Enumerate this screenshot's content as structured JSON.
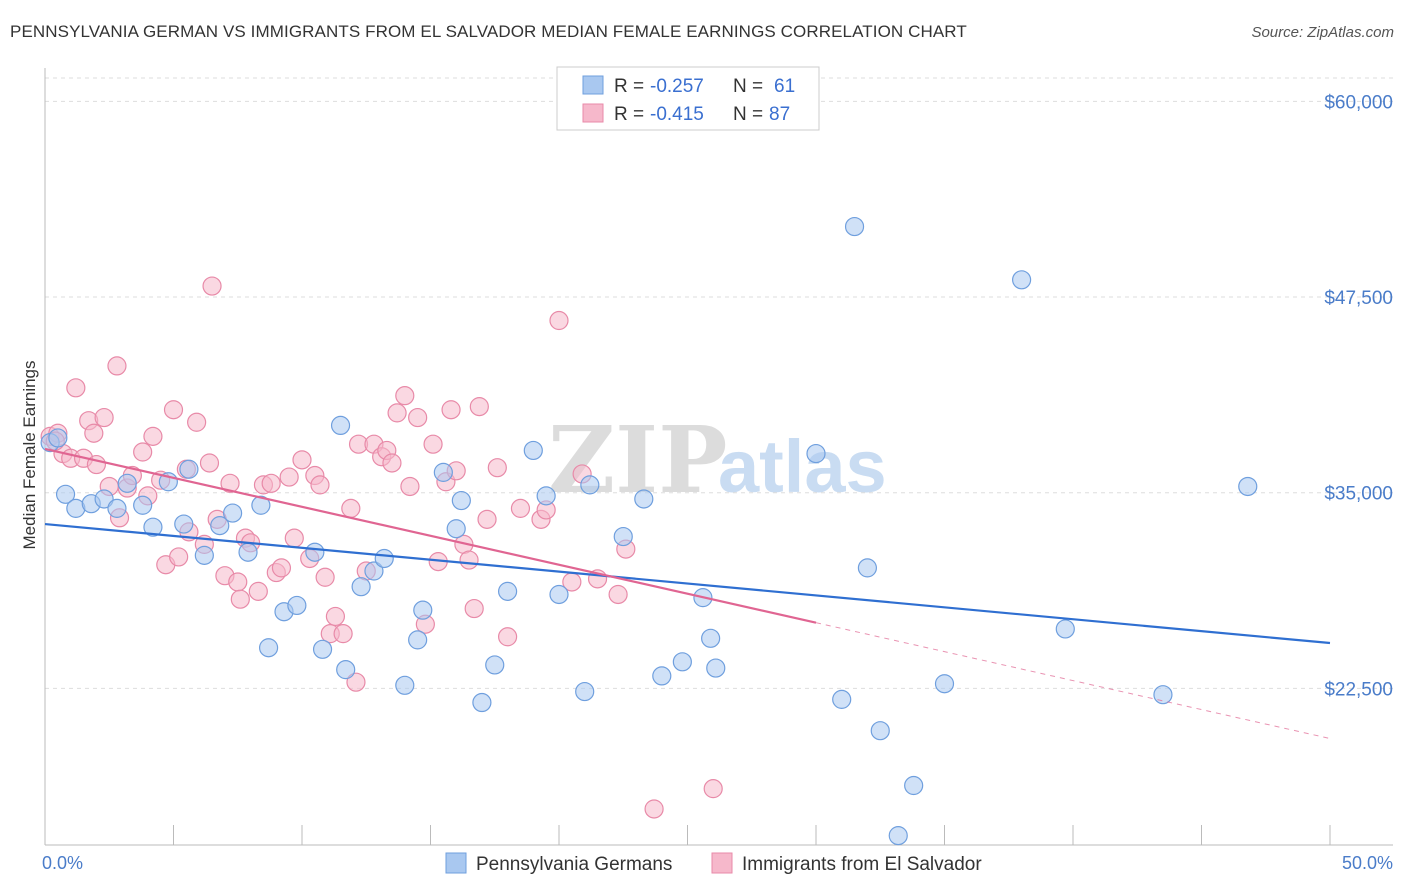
{
  "header": {
    "title": "PENNSYLVANIA GERMAN VS IMMIGRANTS FROM EL SALVADOR MEDIAN FEMALE EARNINGS CORRELATION CHART",
    "source": "Source: ZipAtlas.com"
  },
  "watermark": {
    "zip": "ZIP",
    "atlas": "atlas"
  },
  "legend_box": {
    "r_label": "R =",
    "n_label": "N =",
    "rows": [
      {
        "r": "-0.257",
        "n": "61",
        "color": "#a9c8f0"
      },
      {
        "r": "-0.415",
        "n": "87",
        "color": "#f6b8cb"
      }
    ]
  },
  "colors": {
    "blue_fill": "#a9c8f0",
    "blue_stroke": "#6f9fde",
    "blue_line": "#2f6fd1",
    "pink_fill": "#f6b8cb",
    "pink_stroke": "#e88aa8",
    "pink_line": "#e06592",
    "axis_label": "#4a7cc9",
    "grid": "#dddddd"
  },
  "chart_data": {
    "type": "scatter",
    "title": "PENNSYLVANIA GERMAN VS IMMIGRANTS FROM EL SALVADOR MEDIAN FEMALE EARNINGS CORRELATION CHART",
    "xlabel": "",
    "ylabel": "Median Female Earnings",
    "xlim": [
      0,
      50
    ],
    "ylim": [
      12500,
      62000
    ],
    "x_tick_labels": [
      "0.0%",
      "50.0%"
    ],
    "y_ticks": [
      22500,
      35000,
      47500,
      60000
    ],
    "y_tick_labels": [
      "$22,500",
      "$35,000",
      "$47,500",
      "$60,000"
    ],
    "grid": "horizontal dashed",
    "legend_position": "bottom-center",
    "series": [
      {
        "name": "Pennsylvania Germans",
        "R": -0.257,
        "N": 61,
        "trend": {
          "x": [
            0,
            50
          ],
          "y": [
            33000,
            25400
          ]
        },
        "points": [
          [
            0.2,
            38200
          ],
          [
            0.8,
            34900
          ],
          [
            1.2,
            34000
          ],
          [
            1.8,
            34300
          ],
          [
            2.3,
            34600
          ],
          [
            2.8,
            34000
          ],
          [
            3.2,
            35600
          ],
          [
            3.8,
            34200
          ],
          [
            4.2,
            32800
          ],
          [
            4.8,
            35700
          ],
          [
            5.4,
            33000
          ],
          [
            5.6,
            36500
          ],
          [
            6.2,
            31000
          ],
          [
            6.8,
            32900
          ],
          [
            7.3,
            33700
          ],
          [
            7.9,
            31200
          ],
          [
            8.4,
            34200
          ],
          [
            8.7,
            25100
          ],
          [
            9.3,
            27400
          ],
          [
            9.8,
            27800
          ],
          [
            10.8,
            25000
          ],
          [
            10.5,
            31200
          ],
          [
            11.5,
            39300
          ],
          [
            11.7,
            23700
          ],
          [
            12.3,
            29000
          ],
          [
            12.8,
            30000
          ],
          [
            13.2,
            30800
          ],
          [
            14.0,
            22700
          ],
          [
            14.5,
            25600
          ],
          [
            14.7,
            27500
          ],
          [
            15.5,
            36300
          ],
          [
            16.0,
            32700
          ],
          [
            16.2,
            34500
          ],
          [
            17.0,
            21600
          ],
          [
            17.5,
            24000
          ],
          [
            18.0,
            28700
          ],
          [
            19.0,
            37700
          ],
          [
            19.5,
            34800
          ],
          [
            20.0,
            28500
          ],
          [
            21.0,
            22300
          ],
          [
            21.2,
            35500
          ],
          [
            22.5,
            32200
          ],
          [
            23.3,
            34600
          ],
          [
            24.0,
            23300
          ],
          [
            24.8,
            24200
          ],
          [
            25.6,
            28300
          ],
          [
            25.9,
            25700
          ],
          [
            26.1,
            23800
          ],
          [
            30.0,
            37500
          ],
          [
            31.0,
            21800
          ],
          [
            31.5,
            52000
          ],
          [
            32.0,
            30200
          ],
          [
            32.5,
            19800
          ],
          [
            33.8,
            16300
          ],
          [
            33.2,
            13100
          ],
          [
            35.0,
            22800
          ],
          [
            38.0,
            48600
          ],
          [
            39.7,
            26300
          ],
          [
            43.5,
            22100
          ],
          [
            46.8,
            35400
          ],
          [
            0.5,
            38500
          ]
        ]
      },
      {
        "name": "Immigrants from El Salvador",
        "R": -0.415,
        "N": 87,
        "trend": {
          "x": [
            0,
            30
          ],
          "y": [
            37800,
            26700
          ]
        },
        "trend_dashed": {
          "x": [
            30,
            50
          ],
          "y": [
            26700,
            19300
          ]
        },
        "points": [
          [
            0.2,
            38600
          ],
          [
            0.5,
            38800
          ],
          [
            0.7,
            37500
          ],
          [
            1.0,
            37200
          ],
          [
            1.2,
            41700
          ],
          [
            1.5,
            37200
          ],
          [
            1.7,
            39600
          ],
          [
            1.9,
            38800
          ],
          [
            2.0,
            36800
          ],
          [
            2.3,
            39800
          ],
          [
            2.5,
            35400
          ],
          [
            2.8,
            43100
          ],
          [
            2.9,
            33400
          ],
          [
            3.2,
            35300
          ],
          [
            3.4,
            36100
          ],
          [
            3.8,
            37600
          ],
          [
            4.0,
            34800
          ],
          [
            4.2,
            38600
          ],
          [
            4.5,
            35800
          ],
          [
            4.7,
            30400
          ],
          [
            5.0,
            40300
          ],
          [
            5.2,
            30900
          ],
          [
            5.5,
            36500
          ],
          [
            5.6,
            32500
          ],
          [
            5.9,
            39500
          ],
          [
            6.2,
            31700
          ],
          [
            6.4,
            36900
          ],
          [
            6.5,
            48200
          ],
          [
            6.7,
            33300
          ],
          [
            7.0,
            29700
          ],
          [
            7.2,
            35600
          ],
          [
            7.5,
            29300
          ],
          [
            7.6,
            28200
          ],
          [
            7.8,
            32100
          ],
          [
            8.0,
            31800
          ],
          [
            8.3,
            28700
          ],
          [
            8.5,
            35500
          ],
          [
            8.8,
            35600
          ],
          [
            9.0,
            29900
          ],
          [
            9.2,
            30200
          ],
          [
            9.5,
            36000
          ],
          [
            9.7,
            32100
          ],
          [
            10.0,
            37100
          ],
          [
            10.3,
            30800
          ],
          [
            10.5,
            36100
          ],
          [
            10.7,
            35500
          ],
          [
            10.9,
            29600
          ],
          [
            11.1,
            26000
          ],
          [
            11.3,
            27100
          ],
          [
            11.6,
            26000
          ],
          [
            11.9,
            34000
          ],
          [
            12.1,
            22900
          ],
          [
            12.2,
            38100
          ],
          [
            12.5,
            30000
          ],
          [
            12.8,
            38100
          ],
          [
            13.1,
            37300
          ],
          [
            13.3,
            37700
          ],
          [
            13.5,
            36900
          ],
          [
            13.7,
            40100
          ],
          [
            14.0,
            41200
          ],
          [
            14.2,
            35400
          ],
          [
            14.5,
            39800
          ],
          [
            14.8,
            26600
          ],
          [
            15.1,
            38100
          ],
          [
            15.3,
            30600
          ],
          [
            15.6,
            35700
          ],
          [
            15.8,
            40300
          ],
          [
            16.0,
            36400
          ],
          [
            16.3,
            31700
          ],
          [
            16.5,
            30700
          ],
          [
            16.7,
            27600
          ],
          [
            16.9,
            40500
          ],
          [
            17.2,
            33300
          ],
          [
            17.6,
            36600
          ],
          [
            18.0,
            25800
          ],
          [
            18.5,
            34000
          ],
          [
            19.3,
            33300
          ],
          [
            19.5,
            33900
          ],
          [
            20.0,
            46000
          ],
          [
            20.5,
            29300
          ],
          [
            20.9,
            36200
          ],
          [
            21.5,
            29500
          ],
          [
            22.3,
            28500
          ],
          [
            22.6,
            31400
          ],
          [
            23.7,
            14800
          ],
          [
            26.0,
            16100
          ],
          [
            0.4,
            38300
          ]
        ]
      }
    ]
  },
  "bottom_legend": [
    {
      "label": "Pennsylvania Germans"
    },
    {
      "label": "Immigrants from El Salvador"
    }
  ]
}
